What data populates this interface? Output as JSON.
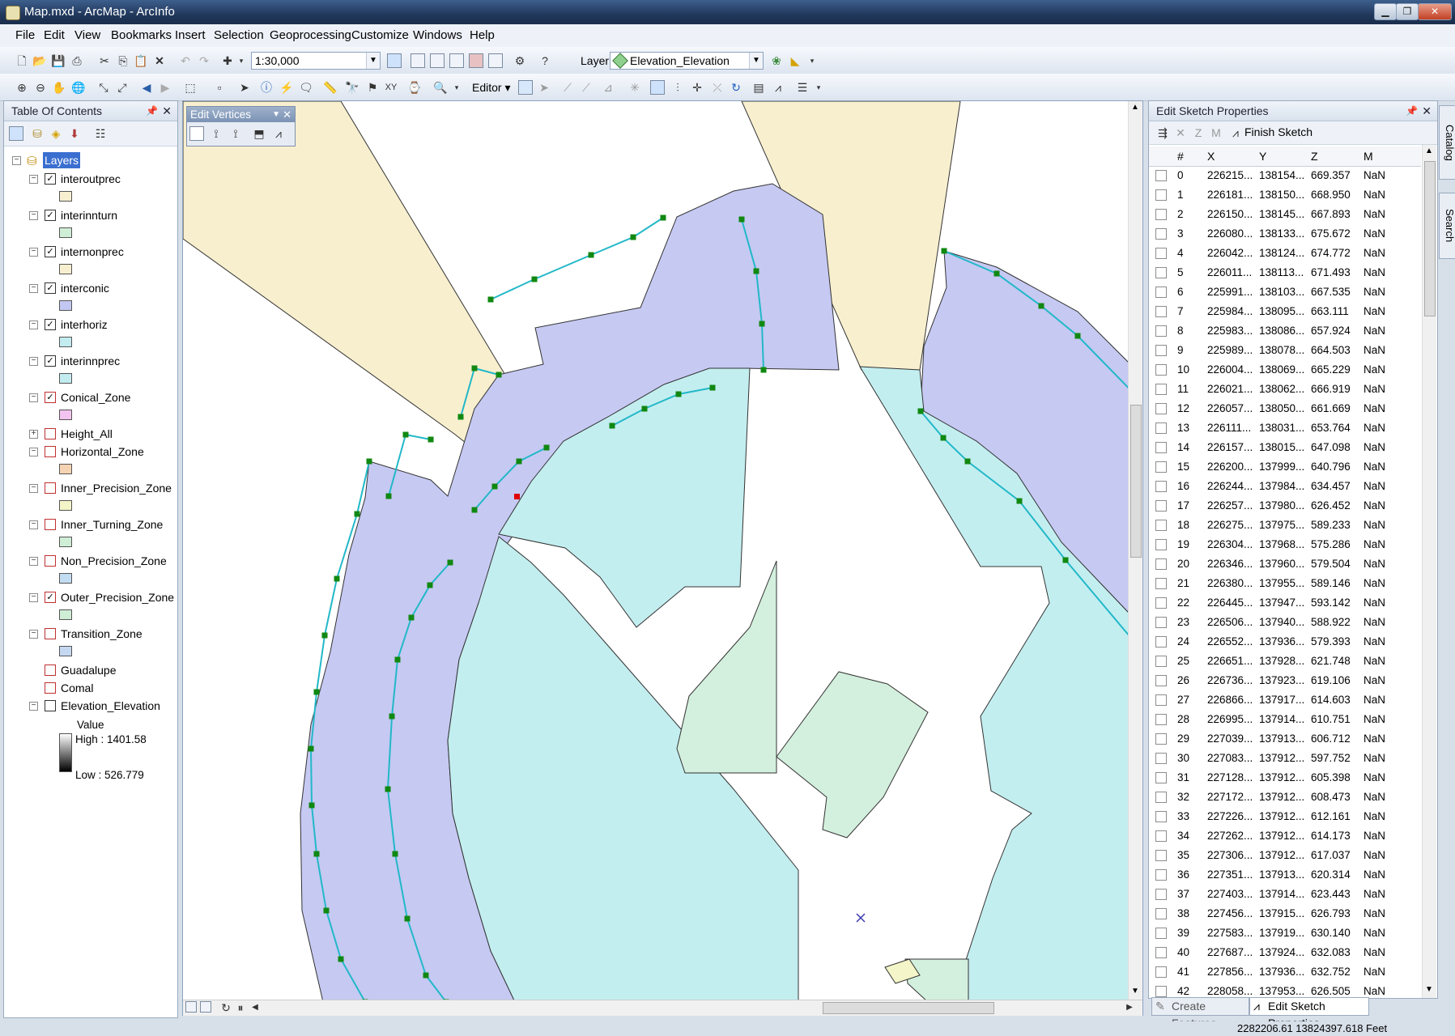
{
  "window": {
    "title": "Map.mxd - ArcMap - ArcInfo"
  },
  "menu": [
    "File",
    "Edit",
    "View",
    "Bookmarks",
    "Insert",
    "Selection",
    "Geoprocessing",
    "Customize",
    "Windows",
    "Help"
  ],
  "toolbar": {
    "scale": "1:30,000",
    "layer_label": "Layer:",
    "layer_value": "Elevation_Elevation",
    "editor_label": "Editor"
  },
  "edit_vertices": {
    "title": "Edit Vertices"
  },
  "toc": {
    "title": "Table Of Contents",
    "root": "Layers",
    "layers": [
      {
        "name": "interoutprec",
        "checked": "✓",
        "color": "#f7efcf",
        "red": false
      },
      {
        "name": "interinnturn",
        "checked": "✓",
        "color": "#cfeed6",
        "red": false
      },
      {
        "name": "internonprec",
        "checked": "✓",
        "color": "#f7efcf",
        "red": false
      },
      {
        "name": "interconic",
        "checked": "✓",
        "color": "#c3c8f2",
        "red": false
      },
      {
        "name": "interhoriz",
        "checked": "✓",
        "color": "#c2ecef",
        "red": false
      },
      {
        "name": "interinnprec",
        "checked": "✓",
        "color": "#c2ecef",
        "red": false
      },
      {
        "name": "Conical_Zone",
        "checked": "✓",
        "color": "#f3c4ef",
        "red": true
      },
      {
        "name": "Height_All",
        "checked": "",
        "color": "",
        "red": true
      },
      {
        "name": "Horizontal_Zone",
        "checked": "",
        "color": "#f6d3b2",
        "red": true
      },
      {
        "name": "Inner_Precision_Zone",
        "checked": "",
        "color": "#f3f5c8",
        "red": true
      },
      {
        "name": "Inner_Turning_Zone",
        "checked": "",
        "color": "#cfeed6",
        "red": true
      },
      {
        "name": "Non_Precision_Zone",
        "checked": "",
        "color": "#c2dcf2",
        "red": true
      },
      {
        "name": "Outer_Precision_Zone",
        "checked": "✓",
        "color": "#cfeed6",
        "red": true
      },
      {
        "name": "Transition_Zone",
        "checked": "",
        "color": "#c5d8f2",
        "red": true
      },
      {
        "name": "Guadalupe",
        "checked": "",
        "color": "",
        "red": true
      },
      {
        "name": "Comal",
        "checked": "",
        "color": "",
        "red": true
      },
      {
        "name": "Elevation_Elevation",
        "checked": "",
        "color": "",
        "red": false
      }
    ],
    "legend": {
      "value_label": "Value",
      "high": "High : 1401.58",
      "low": "Low : 526.779"
    }
  },
  "sketch": {
    "title": "Edit Sketch Properties",
    "finish": "Finish Sketch",
    "columns": [
      "#",
      "X",
      "Y",
      "Z",
      "M"
    ],
    "rows": [
      [
        "0",
        "226215...",
        "138154...",
        "669.357",
        "NaN"
      ],
      [
        "1",
        "226181...",
        "138150...",
        "668.950",
        "NaN"
      ],
      [
        "2",
        "226150...",
        "138145...",
        "667.893",
        "NaN"
      ],
      [
        "3",
        "226080...",
        "138133...",
        "675.672",
        "NaN"
      ],
      [
        "4",
        "226042...",
        "138124...",
        "674.772",
        "NaN"
      ],
      [
        "5",
        "226011...",
        "138113...",
        "671.493",
        "NaN"
      ],
      [
        "6",
        "225991...",
        "138103...",
        "667.535",
        "NaN"
      ],
      [
        "7",
        "225984...",
        "138095...",
        "663.111",
        "NaN"
      ],
      [
        "8",
        "225983...",
        "138086...",
        "657.924",
        "NaN"
      ],
      [
        "9",
        "225989...",
        "138078...",
        "664.503",
        "NaN"
      ],
      [
        "10",
        "226004...",
        "138069...",
        "665.229",
        "NaN"
      ],
      [
        "11",
        "226021...",
        "138062...",
        "666.919",
        "NaN"
      ],
      [
        "12",
        "226057...",
        "138050...",
        "661.669",
        "NaN"
      ],
      [
        "13",
        "226111...",
        "138031...",
        "653.764",
        "NaN"
      ],
      [
        "14",
        "226157...",
        "138015...",
        "647.098",
        "NaN"
      ],
      [
        "15",
        "226200...",
        "137999...",
        "640.796",
        "NaN"
      ],
      [
        "16",
        "226244...",
        "137984...",
        "634.457",
        "NaN"
      ],
      [
        "17",
        "226257...",
        "137980...",
        "626.452",
        "NaN"
      ],
      [
        "18",
        "226275...",
        "137975...",
        "589.233",
        "NaN"
      ],
      [
        "19",
        "226304...",
        "137968...",
        "575.286",
        "NaN"
      ],
      [
        "20",
        "226346...",
        "137960...",
        "579.504",
        "NaN"
      ],
      [
        "21",
        "226380...",
        "137955...",
        "589.146",
        "NaN"
      ],
      [
        "22",
        "226445...",
        "137947...",
        "593.142",
        "NaN"
      ],
      [
        "23",
        "226506...",
        "137940...",
        "588.922",
        "NaN"
      ],
      [
        "24",
        "226552...",
        "137936...",
        "579.393",
        "NaN"
      ],
      [
        "25",
        "226651...",
        "137928...",
        "621.748",
        "NaN"
      ],
      [
        "26",
        "226736...",
        "137923...",
        "619.106",
        "NaN"
      ],
      [
        "27",
        "226866...",
        "137917...",
        "614.603",
        "NaN"
      ],
      [
        "28",
        "226995...",
        "137914...",
        "610.751",
        "NaN"
      ],
      [
        "29",
        "227039...",
        "137913...",
        "606.712",
        "NaN"
      ],
      [
        "30",
        "227083...",
        "137912...",
        "597.752",
        "NaN"
      ],
      [
        "31",
        "227128...",
        "137912...",
        "605.398",
        "NaN"
      ],
      [
        "32",
        "227172...",
        "137912...",
        "608.473",
        "NaN"
      ],
      [
        "33",
        "227226...",
        "137912...",
        "612.161",
        "NaN"
      ],
      [
        "34",
        "227262...",
        "137912...",
        "614.173",
        "NaN"
      ],
      [
        "35",
        "227306...",
        "137912...",
        "617.037",
        "NaN"
      ],
      [
        "36",
        "227351...",
        "137913...",
        "620.314",
        "NaN"
      ],
      [
        "37",
        "227403...",
        "137914...",
        "623.443",
        "NaN"
      ],
      [
        "38",
        "227456...",
        "137915...",
        "626.793",
        "NaN"
      ],
      [
        "39",
        "227583...",
        "137919...",
        "630.140",
        "NaN"
      ],
      [
        "40",
        "227687...",
        "137924...",
        "632.083",
        "NaN"
      ],
      [
        "41",
        "227856...",
        "137936...",
        "632.752",
        "NaN"
      ],
      [
        "42",
        "228058...",
        "137953...",
        "626.505",
        "NaN"
      ]
    ]
  },
  "tabs": {
    "create": "Create Features",
    "edit": "Edit Sketch Properties"
  },
  "side_tabs": {
    "catalog": "Catalog",
    "search": "Search"
  },
  "status": {
    "coords": "2282206.61  13824397.618 Feet"
  }
}
